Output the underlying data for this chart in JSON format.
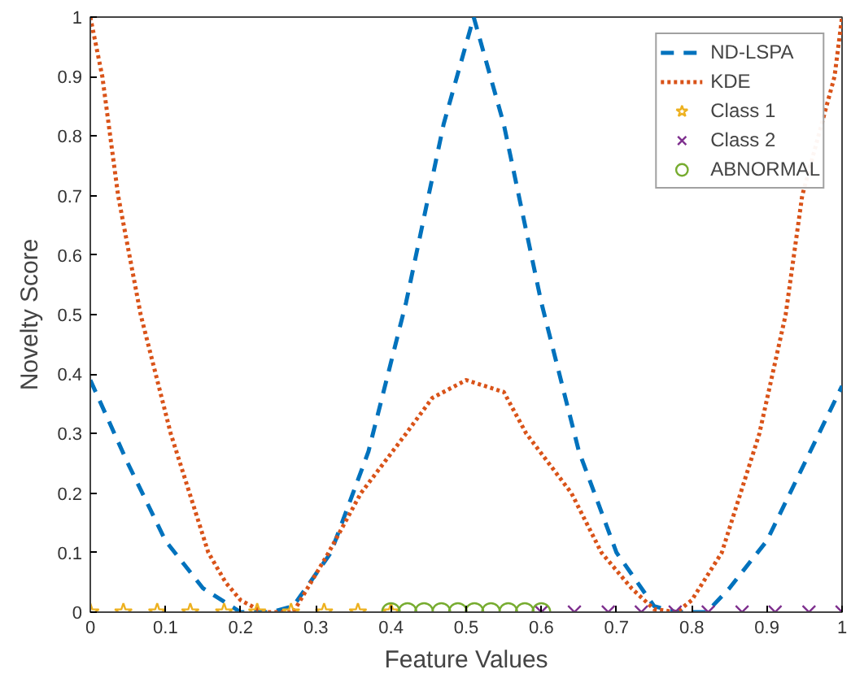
{
  "chart_data": {
    "type": "line",
    "xlabel": "Feature Values",
    "ylabel": "Novelty Score",
    "xlim": [
      0,
      1
    ],
    "ylim": [
      0,
      1
    ],
    "xticks": [
      0,
      0.1,
      0.2,
      0.3,
      0.4,
      0.5,
      0.6,
      0.7,
      0.8,
      0.9,
      1
    ],
    "yticks": [
      0,
      0.1,
      0.2,
      0.3,
      0.4,
      0.5,
      0.6,
      0.7,
      0.8,
      0.9,
      1
    ],
    "grid": false,
    "legend": "top right",
    "series": [
      {
        "name": "ND-LSPA",
        "line_style": "dashed",
        "color": "#0072bd",
        "x": [
          0,
          0.05,
          0.1,
          0.15,
          0.2,
          0.24,
          0.27,
          0.32,
          0.37,
          0.42,
          0.47,
          0.51,
          0.55,
          0.6,
          0.65,
          0.7,
          0.75,
          0.78,
          0.82,
          0.85,
          0.9,
          0.95,
          1
        ],
        "values": [
          0.39,
          0.25,
          0.12,
          0.04,
          0,
          0,
          0.01,
          0.1,
          0.27,
          0.52,
          0.82,
          1.0,
          0.82,
          0.52,
          0.27,
          0.1,
          0.01,
          0,
          0,
          0.04,
          0.12,
          0.25,
          0.38
        ]
      },
      {
        "name": "KDE",
        "line_style": "dotted",
        "color": "#d95319",
        "x": [
          0,
          0.016,
          0.037,
          0.067,
          0.107,
          0.157,
          0.18,
          0.2,
          0.23,
          0.27,
          0.317,
          0.36,
          0.42,
          0.455,
          0.5,
          0.55,
          0.58,
          0.64,
          0.68,
          0.72,
          0.75,
          0.78,
          0.8,
          0.84,
          0.89,
          0.925,
          0.947,
          0.99,
          1
        ],
        "values": [
          1.0,
          0.9,
          0.7,
          0.5,
          0.3,
          0.1,
          0.05,
          0.02,
          0,
          0,
          0.1,
          0.2,
          0.3,
          0.36,
          0.39,
          0.37,
          0.3,
          0.2,
          0.1,
          0.04,
          0.005,
          0,
          0.02,
          0.1,
          0.3,
          0.5,
          0.7,
          0.9,
          1.0
        ]
      },
      {
        "name": "Class 1",
        "type": "scatter",
        "marker": "star",
        "color": "#edb120",
        "x": [
          0,
          0.044,
          0.089,
          0.133,
          0.178,
          0.222,
          0.267,
          0.311,
          0.356,
          0.4
        ],
        "values": [
          0,
          0,
          0,
          0,
          0,
          0,
          0,
          0,
          0,
          0
        ]
      },
      {
        "name": "Class 2",
        "type": "scatter",
        "marker": "cross",
        "color": "#7e2f8e",
        "x": [
          0.6,
          0.644,
          0.689,
          0.733,
          0.778,
          0.822,
          0.867,
          0.911,
          0.956,
          1
        ],
        "values": [
          0,
          0,
          0,
          0,
          0,
          0,
          0,
          0,
          0,
          0
        ]
      },
      {
        "name": "ABNORMAL",
        "type": "scatter",
        "marker": "circle",
        "color": "#77ac30",
        "x": [
          0.4,
          0.422,
          0.444,
          0.467,
          0.489,
          0.511,
          0.533,
          0.556,
          0.578,
          0.6
        ],
        "values": [
          0,
          0,
          0,
          0,
          0,
          0,
          0,
          0,
          0,
          0
        ]
      }
    ]
  }
}
